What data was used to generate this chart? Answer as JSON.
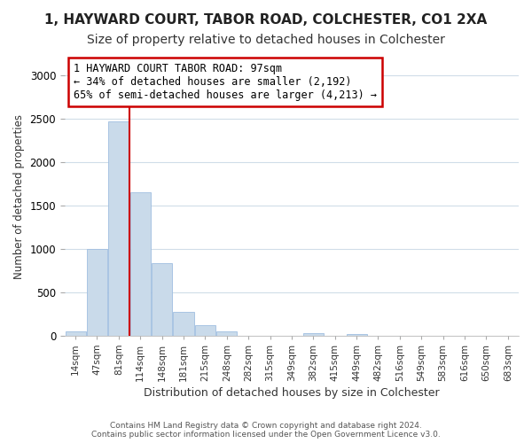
{
  "title1": "1, HAYWARD COURT, TABOR ROAD, COLCHESTER, CO1 2XA",
  "title2": "Size of property relative to detached houses in Colchester",
  "xlabel": "Distribution of detached houses by size in Colchester",
  "ylabel": "Number of detached properties",
  "categories": [
    "14sqm",
    "47sqm",
    "81sqm",
    "114sqm",
    "148sqm",
    "181sqm",
    "215sqm",
    "248sqm",
    "282sqm",
    "315sqm",
    "349sqm",
    "382sqm",
    "415sqm",
    "449sqm",
    "482sqm",
    "516sqm",
    "549sqm",
    "583sqm",
    "616sqm",
    "650sqm",
    "683sqm"
  ],
  "values": [
    50,
    1000,
    2470,
    1650,
    840,
    270,
    120,
    50,
    3,
    3,
    3,
    30,
    3,
    15,
    0,
    0,
    0,
    0,
    0,
    0,
    0
  ],
  "bar_color": "#c9daea",
  "bar_edge_color": "#a0bee0",
  "red_line_color": "#cc0000",
  "red_line_x": 2.5,
  "annotation_text": "1 HAYWARD COURT TABOR ROAD: 97sqm\n← 34% of detached houses are smaller (2,192)\n65% of semi-detached houses are larger (4,213) →",
  "annotation_box_color": "white",
  "annotation_box_edge": "#cc0000",
  "footer": "Contains HM Land Registry data © Crown copyright and database right 2024.\nContains public sector information licensed under the Open Government Licence v3.0.",
  "ylim": [
    0,
    3200
  ],
  "background_color": "#ffffff",
  "plot_bg_color": "#ffffff",
  "grid_color": "#d0dde8",
  "title1_fontsize": 11,
  "title2_fontsize": 10
}
